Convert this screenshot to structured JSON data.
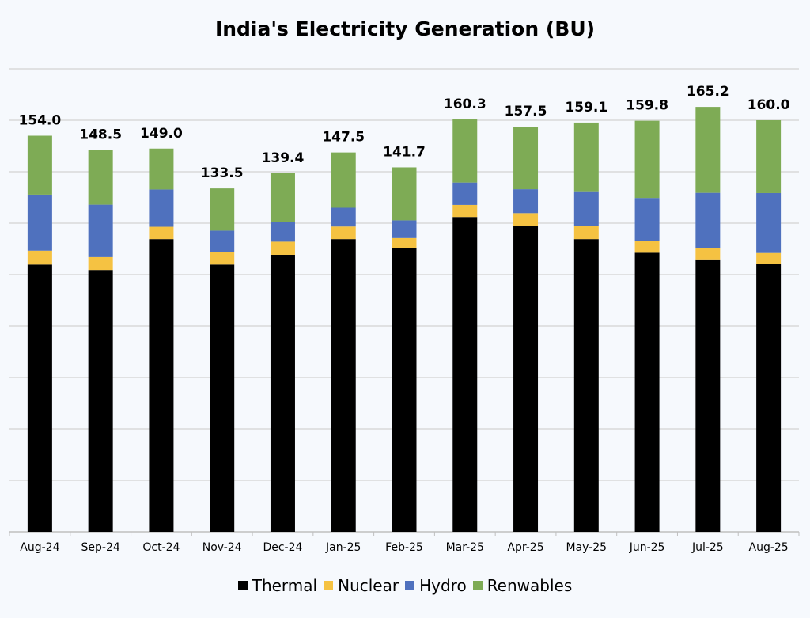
{
  "chart_data": {
    "type": "bar",
    "stacked": true,
    "title": "India's Electricity Generation (BU)",
    "xlabel": "",
    "ylabel": "",
    "ylim": [
      0,
      180
    ],
    "grid": true,
    "legend_position": "bottom",
    "categories": [
      "Aug-24",
      "Sep-24",
      "Oct-24",
      "Nov-24",
      "Dec-24",
      "Jan-25",
      "Feb-25",
      "Mar-25",
      "Apr-25",
      "May-25",
      "Jun-25",
      "Jul-25",
      "Aug-25"
    ],
    "totals": [
      "154.0",
      "148.5",
      "149.0",
      "133.5",
      "139.4",
      "147.5",
      "141.7",
      "160.3",
      "157.5",
      "159.1",
      "159.8",
      "165.2",
      "160.0"
    ],
    "series": [
      {
        "name": "Thermal",
        "color": "#000000",
        "values": [
          103.9,
          101.8,
          113.8,
          103.9,
          107.7,
          113.8,
          110.2,
          122.4,
          118.8,
          113.8,
          108.5,
          105.9,
          104.3
        ]
      },
      {
        "name": "Nuclear",
        "color": "#f5c242",
        "values": [
          5.4,
          5.0,
          4.8,
          4.9,
          5.1,
          4.9,
          4.0,
          4.7,
          5.1,
          5.2,
          4.5,
          4.4,
          4.1
        ]
      },
      {
        "name": "Hydro",
        "color": "#4f71be",
        "values": [
          21.8,
          20.4,
          14.5,
          8.3,
          7.7,
          7.3,
          6.9,
          8.7,
          9.3,
          13.1,
          16.8,
          21.5,
          23.3
        ]
      },
      {
        "name": "Renwables",
        "color": "#7eab55",
        "values": [
          22.9,
          21.3,
          15.9,
          16.4,
          18.9,
          21.5,
          20.6,
          24.5,
          24.3,
          27.0,
          30.0,
          33.4,
          28.3
        ]
      }
    ]
  }
}
